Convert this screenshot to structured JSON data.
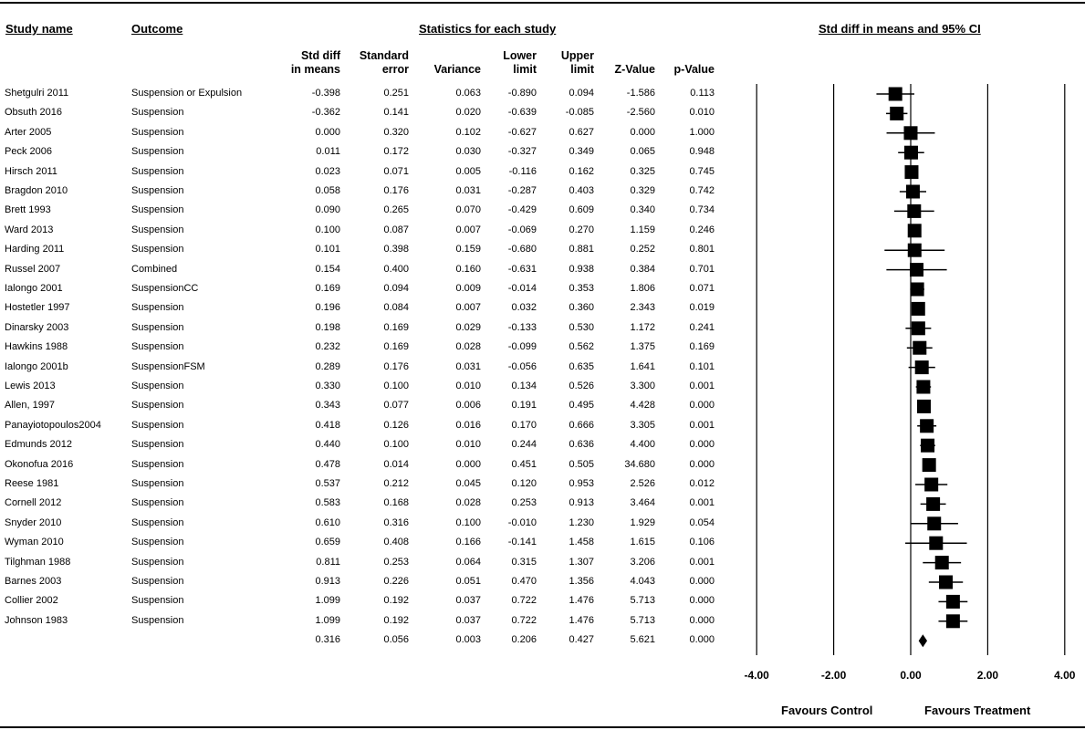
{
  "headers": {
    "study_name": "Study name",
    "outcome": "Outcome",
    "stats": "Statistics for each study",
    "plot": "Std diff in means and 95% CI"
  },
  "columns": [
    {
      "key": "std_diff",
      "line1": "Std diff",
      "line2": "in means"
    },
    {
      "key": "se",
      "line1": "Standard",
      "line2": "error"
    },
    {
      "key": "variance",
      "line1": "",
      "line2": "Variance"
    },
    {
      "key": "lower",
      "line1": "Lower",
      "line2": "limit"
    },
    {
      "key": "upper",
      "line1": "Upper",
      "line2": "limit"
    },
    {
      "key": "z",
      "line1": "",
      "line2": "Z-Value"
    },
    {
      "key": "p",
      "line1": "",
      "line2": "p-Value"
    }
  ],
  "studies": [
    {
      "name": "Shetgulri 2011",
      "outcome": "Suspension or Expulsion",
      "std_diff": "-0.398",
      "se": "0.251",
      "variance": "0.063",
      "lower": "-0.890",
      "upper": "0.094",
      "z": "-1.586",
      "p": "0.113"
    },
    {
      "name": "Obsuth 2016",
      "outcome": "Suspension",
      "std_diff": "-0.362",
      "se": "0.141",
      "variance": "0.020",
      "lower": "-0.639",
      "upper": "-0.085",
      "z": "-2.560",
      "p": "0.010"
    },
    {
      "name": "Arter 2005",
      "outcome": "Suspension",
      "std_diff": "0.000",
      "se": "0.320",
      "variance": "0.102",
      "lower": "-0.627",
      "upper": "0.627",
      "z": "0.000",
      "p": "1.000"
    },
    {
      "name": "Peck 2006",
      "outcome": "Suspension",
      "std_diff": "0.011",
      "se": "0.172",
      "variance": "0.030",
      "lower": "-0.327",
      "upper": "0.349",
      "z": "0.065",
      "p": "0.948"
    },
    {
      "name": "Hirsch 2011",
      "outcome": "Suspension",
      "std_diff": "0.023",
      "se": "0.071",
      "variance": "0.005",
      "lower": "-0.116",
      "upper": "0.162",
      "z": "0.325",
      "p": "0.745"
    },
    {
      "name": "Bragdon 2010",
      "outcome": "Suspension",
      "std_diff": "0.058",
      "se": "0.176",
      "variance": "0.031",
      "lower": "-0.287",
      "upper": "0.403",
      "z": "0.329",
      "p": "0.742"
    },
    {
      "name": "Brett 1993",
      "outcome": "Suspension",
      "std_diff": "0.090",
      "se": "0.265",
      "variance": "0.070",
      "lower": "-0.429",
      "upper": "0.609",
      "z": "0.340",
      "p": "0.734"
    },
    {
      "name": "Ward 2013",
      "outcome": "Suspension",
      "std_diff": "0.100",
      "se": "0.087",
      "variance": "0.007",
      "lower": "-0.069",
      "upper": "0.270",
      "z": "1.159",
      "p": "0.246"
    },
    {
      "name": "Harding 2011",
      "outcome": "Suspension",
      "std_diff": "0.101",
      "se": "0.398",
      "variance": "0.159",
      "lower": "-0.680",
      "upper": "0.881",
      "z": "0.252",
      "p": "0.801"
    },
    {
      "name": "Russel 2007",
      "outcome": "Combined",
      "std_diff": "0.154",
      "se": "0.400",
      "variance": "0.160",
      "lower": "-0.631",
      "upper": "0.938",
      "z": "0.384",
      "p": "0.701"
    },
    {
      "name": "Ialongo 2001",
      "outcome": "SuspensionCC",
      "std_diff": "0.169",
      "se": "0.094",
      "variance": "0.009",
      "lower": "-0.014",
      "upper": "0.353",
      "z": "1.806",
      "p": "0.071"
    },
    {
      "name": "Hostetler 1997",
      "outcome": "Suspension",
      "std_diff": "0.196",
      "se": "0.084",
      "variance": "0.007",
      "lower": "0.032",
      "upper": "0.360",
      "z": "2.343",
      "p": "0.019"
    },
    {
      "name": "Dinarsky 2003",
      "outcome": "Suspension",
      "std_diff": "0.198",
      "se": "0.169",
      "variance": "0.029",
      "lower": "-0.133",
      "upper": "0.530",
      "z": "1.172",
      "p": "0.241"
    },
    {
      "name": "Hawkins 1988",
      "outcome": "Suspension",
      "std_diff": "0.232",
      "se": "0.169",
      "variance": "0.028",
      "lower": "-0.099",
      "upper": "0.562",
      "z": "1.375",
      "p": "0.169"
    },
    {
      "name": "Ialongo 2001b",
      "outcome": "SuspensionFSM",
      "std_diff": "0.289",
      "se": "0.176",
      "variance": "0.031",
      "lower": "-0.056",
      "upper": "0.635",
      "z": "1.641",
      "p": "0.101"
    },
    {
      "name": "Lewis 2013",
      "outcome": "Suspension",
      "std_diff": "0.330",
      "se": "0.100",
      "variance": "0.010",
      "lower": "0.134",
      "upper": "0.526",
      "z": "3.300",
      "p": "0.001"
    },
    {
      "name": "Allen, 1997",
      "outcome": "Suspension",
      "std_diff": "0.343",
      "se": "0.077",
      "variance": "0.006",
      "lower": "0.191",
      "upper": "0.495",
      "z": "4.428",
      "p": "0.000"
    },
    {
      "name": "Panayiotopoulos2004",
      "outcome": "Suspension",
      "std_diff": "0.418",
      "se": "0.126",
      "variance": "0.016",
      "lower": "0.170",
      "upper": "0.666",
      "z": "3.305",
      "p": "0.001"
    },
    {
      "name": "Edmunds 2012",
      "outcome": "Suspension",
      "std_diff": "0.440",
      "se": "0.100",
      "variance": "0.010",
      "lower": "0.244",
      "upper": "0.636",
      "z": "4.400",
      "p": "0.000"
    },
    {
      "name": "Okonofua 2016",
      "outcome": "Suspension",
      "std_diff": "0.478",
      "se": "0.014",
      "variance": "0.000",
      "lower": "0.451",
      "upper": "0.505",
      "z": "34.680",
      "p": "0.000"
    },
    {
      "name": "Reese 1981",
      "outcome": "Suspension",
      "std_diff": "0.537",
      "se": "0.212",
      "variance": "0.045",
      "lower": "0.120",
      "upper": "0.953",
      "z": "2.526",
      "p": "0.012"
    },
    {
      "name": "Cornell 2012",
      "outcome": "Suspension",
      "std_diff": "0.583",
      "se": "0.168",
      "variance": "0.028",
      "lower": "0.253",
      "upper": "0.913",
      "z": "3.464",
      "p": "0.001"
    },
    {
      "name": "Snyder 2010",
      "outcome": "Suspension",
      "std_diff": "0.610",
      "se": "0.316",
      "variance": "0.100",
      "lower": "-0.010",
      "upper": "1.230",
      "z": "1.929",
      "p": "0.054"
    },
    {
      "name": "Wyman 2010",
      "outcome": "Suspension",
      "std_diff": "0.659",
      "se": "0.408",
      "variance": "0.166",
      "lower": "-0.141",
      "upper": "1.458",
      "z": "1.615",
      "p": "0.106"
    },
    {
      "name": "Tilghman 1988",
      "outcome": "Suspension",
      "std_diff": "0.811",
      "se": "0.253",
      "variance": "0.064",
      "lower": "0.315",
      "upper": "1.307",
      "z": "3.206",
      "p": "0.001"
    },
    {
      "name": "Barnes 2003",
      "outcome": "Suspension",
      "std_diff": "0.913",
      "se": "0.226",
      "variance": "0.051",
      "lower": "0.470",
      "upper": "1.356",
      "z": "4.043",
      "p": "0.000"
    },
    {
      "name": "Collier 2002",
      "outcome": "Suspension",
      "std_diff": "1.099",
      "se": "0.192",
      "variance": "0.037",
      "lower": "0.722",
      "upper": "1.476",
      "z": "5.713",
      "p": "0.000"
    },
    {
      "name": "Johnson 1983",
      "outcome": "Suspension",
      "std_diff": "1.099",
      "se": "0.192",
      "variance": "0.037",
      "lower": "0.722",
      "upper": "1.476",
      "z": "5.713",
      "p": "0.000"
    }
  ],
  "summary": {
    "std_diff": "0.316",
    "se": "0.056",
    "variance": "0.003",
    "lower": "0.206",
    "upper": "0.427",
    "z": "5.621",
    "p": "0.000"
  },
  "chart_data": {
    "type": "forest",
    "xlim": [
      -4,
      4
    ],
    "ticks": [
      "-4.00",
      "-2.00",
      "0.00",
      "2.00",
      "4.00"
    ],
    "tick_values": [
      -4,
      -2,
      0,
      2,
      4
    ],
    "grid": "vertical lines at ticks",
    "xlabel_left": "Favours Control",
    "xlabel_right": "Favours Treatment",
    "marker": "square",
    "summary_marker": "diamond"
  }
}
